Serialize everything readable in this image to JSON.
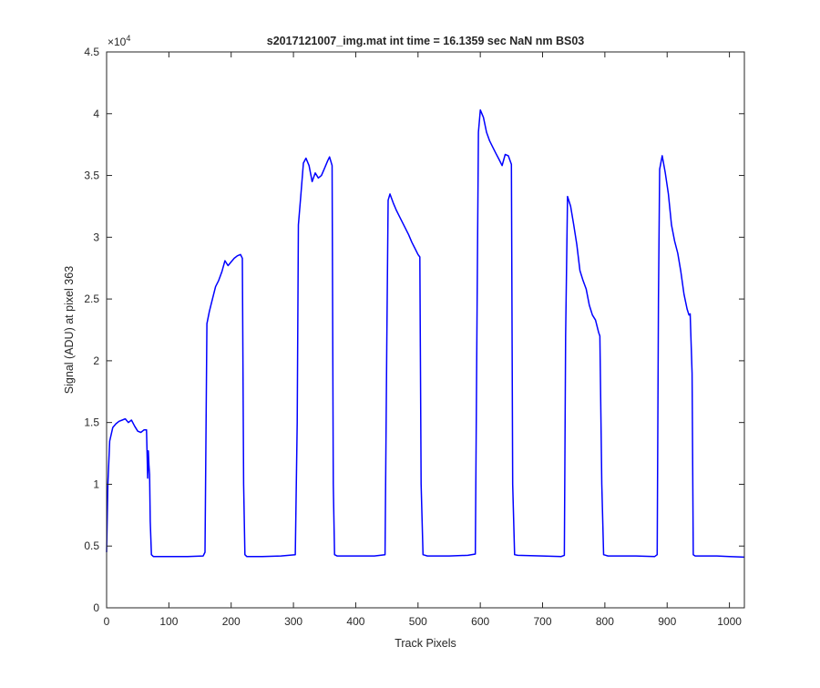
{
  "chart_data": {
    "type": "line",
    "title": "s2017121007_img.mat int time = 16.1359 sec  NaN nm BS03",
    "xlabel": "Track Pixels",
    "ylabel": "Signal (ADU) at pixel 363",
    "y_exponent_label": "×10",
    "y_exponent_power": "4",
    "xlim": [
      0,
      1024
    ],
    "ylim": [
      0,
      45000
    ],
    "x_ticks": [
      0,
      100,
      200,
      300,
      400,
      500,
      600,
      700,
      800,
      900,
      1000
    ],
    "y_ticks": [
      0,
      5000,
      10000,
      15000,
      20000,
      25000,
      30000,
      35000,
      40000,
      45000
    ],
    "x_tick_labels": [
      "0",
      "100",
      "200",
      "300",
      "400",
      "500",
      "600",
      "700",
      "800",
      "900",
      "1000"
    ],
    "y_tick_labels": [
      "0",
      "0.5",
      "1",
      "1.5",
      "2",
      "2.5",
      "3",
      "3.5",
      "4",
      "4.5"
    ],
    "grid": false,
    "line_color": "#0000ff",
    "series": [
      {
        "points": [
          [
            0,
            4500
          ],
          [
            2,
            10000
          ],
          [
            5,
            13500
          ],
          [
            10,
            14600
          ],
          [
            15,
            14900
          ],
          [
            20,
            15100
          ],
          [
            25,
            15200
          ],
          [
            30,
            15300
          ],
          [
            35,
            15000
          ],
          [
            40,
            15200
          ],
          [
            45,
            14700
          ],
          [
            50,
            14300
          ],
          [
            55,
            14200
          ],
          [
            60,
            14400
          ],
          [
            64,
            14400
          ],
          [
            66,
            10500
          ],
          [
            67,
            12700
          ],
          [
            68,
            11500
          ],
          [
            69,
            10800
          ],
          [
            70,
            7000
          ],
          [
            72,
            4300
          ],
          [
            75,
            4150
          ],
          [
            100,
            4150
          ],
          [
            130,
            4150
          ],
          [
            155,
            4200
          ],
          [
            158,
            4500
          ],
          [
            161,
            23000
          ],
          [
            165,
            24000
          ],
          [
            170,
            25000
          ],
          [
            175,
            26000
          ],
          [
            180,
            26500
          ],
          [
            185,
            27200
          ],
          [
            190,
            28100
          ],
          [
            195,
            27700
          ],
          [
            200,
            28000
          ],
          [
            205,
            28300
          ],
          [
            210,
            28500
          ],
          [
            215,
            28600
          ],
          [
            218,
            28300
          ],
          [
            220,
            10000
          ],
          [
            222,
            4300
          ],
          [
            225,
            4150
          ],
          [
            250,
            4150
          ],
          [
            280,
            4200
          ],
          [
            303,
            4300
          ],
          [
            306,
            15000
          ],
          [
            308,
            31000
          ],
          [
            312,
            33500
          ],
          [
            316,
            36000
          ],
          [
            320,
            36400
          ],
          [
            325,
            35800
          ],
          [
            330,
            34500
          ],
          [
            335,
            35200
          ],
          [
            340,
            34800
          ],
          [
            345,
            35000
          ],
          [
            350,
            35600
          ],
          [
            355,
            36200
          ],
          [
            358,
            36500
          ],
          [
            362,
            35800
          ],
          [
            364,
            10000
          ],
          [
            366,
            4300
          ],
          [
            370,
            4200
          ],
          [
            400,
            4200
          ],
          [
            430,
            4200
          ],
          [
            447,
            4300
          ],
          [
            450,
            22000
          ],
          [
            452,
            33000
          ],
          [
            455,
            33500
          ],
          [
            460,
            32800
          ],
          [
            465,
            32200
          ],
          [
            470,
            31700
          ],
          [
            475,
            31200
          ],
          [
            480,
            30700
          ],
          [
            485,
            30200
          ],
          [
            490,
            29600
          ],
          [
            495,
            29100
          ],
          [
            500,
            28600
          ],
          [
            503,
            28400
          ],
          [
            505,
            10000
          ],
          [
            508,
            4300
          ],
          [
            515,
            4200
          ],
          [
            550,
            4200
          ],
          [
            580,
            4250
          ],
          [
            592,
            4350
          ],
          [
            595,
            25000
          ],
          [
            597,
            38500
          ],
          [
            600,
            40300
          ],
          [
            605,
            39700
          ],
          [
            610,
            38500
          ],
          [
            615,
            37800
          ],
          [
            620,
            37300
          ],
          [
            625,
            36800
          ],
          [
            630,
            36300
          ],
          [
            635,
            35800
          ],
          [
            640,
            36700
          ],
          [
            645,
            36600
          ],
          [
            650,
            35900
          ],
          [
            652,
            10000
          ],
          [
            655,
            4300
          ],
          [
            660,
            4250
          ],
          [
            700,
            4200
          ],
          [
            730,
            4150
          ],
          [
            735,
            4250
          ],
          [
            737,
            22000
          ],
          [
            740,
            33300
          ],
          [
            745,
            32500
          ],
          [
            750,
            31000
          ],
          [
            755,
            29400
          ],
          [
            760,
            27300
          ],
          [
            765,
            26500
          ],
          [
            770,
            25800
          ],
          [
            775,
            24500
          ],
          [
            780,
            23700
          ],
          [
            785,
            23300
          ],
          [
            790,
            22300
          ],
          [
            792,
            22000
          ],
          [
            795,
            10000
          ],
          [
            798,
            4300
          ],
          [
            805,
            4200
          ],
          [
            850,
            4200
          ],
          [
            880,
            4150
          ],
          [
            884,
            4300
          ],
          [
            886,
            25000
          ],
          [
            888,
            35500
          ],
          [
            892,
            36600
          ],
          [
            897,
            35200
          ],
          [
            902,
            33500
          ],
          [
            907,
            31000
          ],
          [
            912,
            29700
          ],
          [
            917,
            28700
          ],
          [
            922,
            27200
          ],
          [
            927,
            25400
          ],
          [
            932,
            24200
          ],
          [
            935,
            23700
          ],
          [
            937,
            23800
          ],
          [
            940,
            19000
          ],
          [
            942,
            4300
          ],
          [
            945,
            4200
          ],
          [
            980,
            4200
          ],
          [
            1000,
            4150
          ],
          [
            1024,
            4100
          ]
        ]
      }
    ]
  }
}
